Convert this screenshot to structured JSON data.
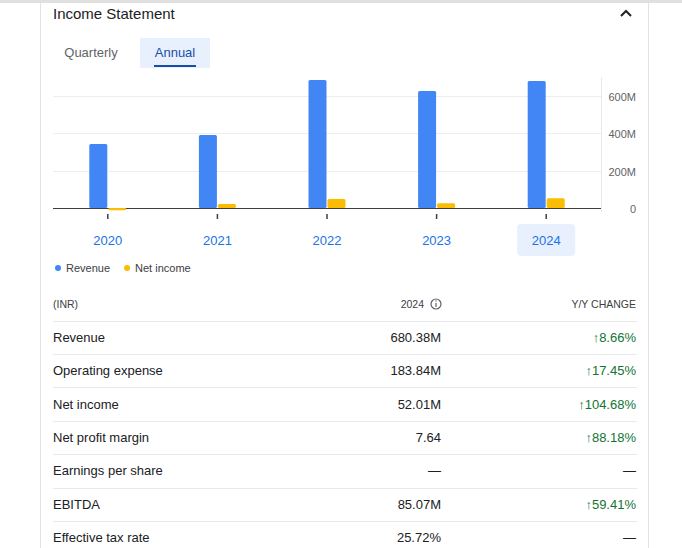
{
  "header": {
    "title": "Income Statement"
  },
  "tabs": [
    {
      "label": "Quarterly",
      "selected": false
    },
    {
      "label": "Annual",
      "selected": true
    }
  ],
  "chart_data": {
    "type": "bar",
    "categories": [
      "2020",
      "2021",
      "2022",
      "2023",
      "2024"
    ],
    "series": [
      {
        "name": "Revenue",
        "color": "#4285f4",
        "values": [
          343,
          391,
          686,
          626.2,
          680.38
        ]
      },
      {
        "name": "Net income",
        "color": "#fbbc04",
        "values": [
          -12,
          21,
          48,
          25.41,
          52.01
        ]
      }
    ],
    "ylim": [
      -20,
      700
    ],
    "yticks": [
      {
        "value": 0,
        "label": "0"
      },
      {
        "value": 200,
        "label": "200M"
      },
      {
        "value": 400,
        "label": "400M"
      },
      {
        "value": 600,
        "label": "600M"
      }
    ],
    "grid": true,
    "legend": "bottom-left"
  },
  "table": {
    "columns": [
      "(INR)",
      "2024",
      "Y/Y CHANGE"
    ],
    "rows": [
      [
        "Revenue",
        "680.38M",
        "↑8.66%"
      ],
      [
        "Operating expense",
        "183.84M",
        "↑17.45%"
      ],
      [
        "Net income",
        "52.01M",
        "↑104.68%"
      ],
      [
        "Net profit margin",
        "7.64",
        "↑88.18%"
      ],
      [
        "Earnings per share",
        "—",
        "—"
      ],
      [
        "EBITDA",
        "85.07M",
        "↑59.41%"
      ],
      [
        "Effective tax rate",
        "25.72%",
        "—"
      ]
    ]
  }
}
